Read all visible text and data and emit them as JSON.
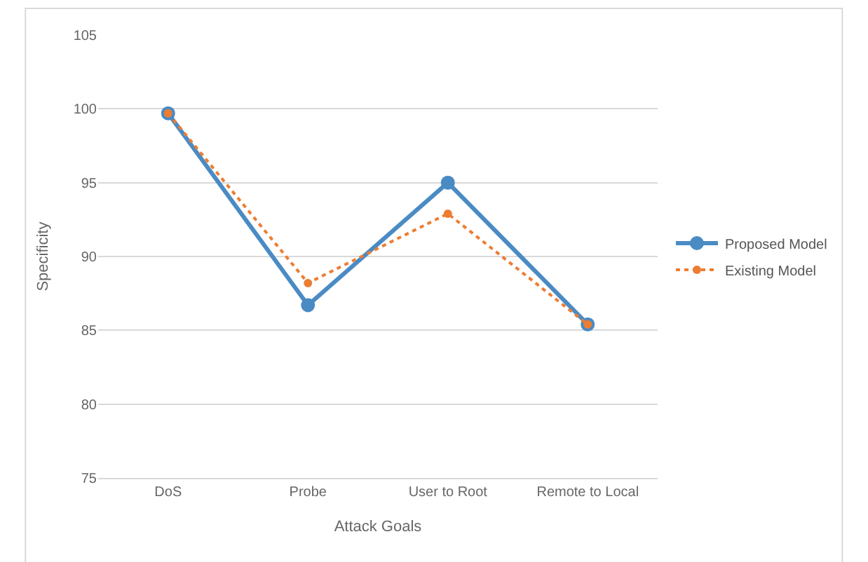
{
  "chart_data": {
    "type": "line",
    "xlabel": "Attack Goals",
    "ylabel": "Specificity",
    "categories": [
      "DoS",
      "Probe",
      "User to Root",
      "Remote to Local"
    ],
    "series": [
      {
        "name": "Proposed Model",
        "color": "#4a8bc4",
        "values": [
          99.7,
          86.7,
          95.0,
          85.4
        ],
        "line_style": "solid"
      },
      {
        "name": "Existing Model",
        "color": "#ed7d31",
        "values": [
          99.7,
          88.2,
          92.9,
          85.4
        ],
        "line_style": "dotted"
      }
    ],
    "ylim": [
      75,
      105
    ],
    "yticks": [
      75,
      80,
      85,
      90,
      95,
      100,
      105
    ],
    "grid": "y",
    "legend": "right",
    "marker": "circle"
  }
}
